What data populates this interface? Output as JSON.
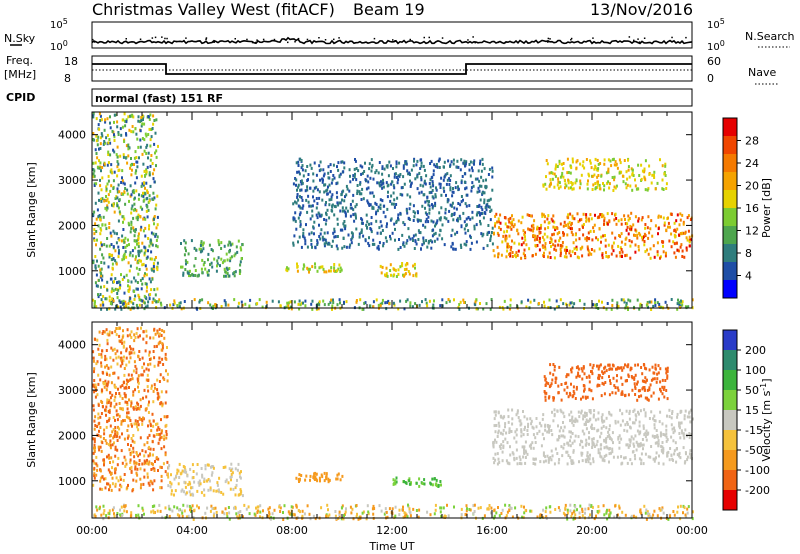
{
  "header": {
    "station": "Christmas Valley West (fitACF)",
    "beam": "Beam 19",
    "date": "13/Nov/2016",
    "cpid_label": "CPID",
    "mode": "normal (fast) 151 RF"
  },
  "aux_panels": {
    "nsky_label": "N.Sky",
    "nsearch_label": "N.Search",
    "noise_ticks_left": [
      "10^5",
      "10^0"
    ],
    "noise_ticks_right": [
      "10^5",
      "10^0"
    ],
    "freq_label": "Freq.",
    "freq_unit": "[MHz]",
    "freq_ticks": [
      "18",
      "8"
    ],
    "nave_label": "Nave",
    "nave_ticks": [
      "60",
      "0"
    ]
  },
  "chart_data": [
    {
      "type": "heatmap",
      "panel": "power",
      "ylabel": "Slant Range [km]",
      "xlabel": "",
      "ylim": [
        180,
        4500
      ],
      "yticks": [
        "1000",
        "2000",
        "3000",
        "4000"
      ],
      "xlim": [
        0,
        24
      ],
      "colorbar": {
        "label": "Power [dB]",
        "ticks": [
          "4",
          "8",
          "12",
          "16",
          "20",
          "24",
          "28"
        ],
        "colors": [
          "#0000ff",
          "#1f4ea6",
          "#2f7d7d",
          "#4ea64e",
          "#7ccc32",
          "#e6d200",
          "#f5a300",
          "#f57a00",
          "#f04600",
          "#e60000"
        ]
      },
      "regions": [
        {
          "t0": 0.0,
          "t1": 2.6,
          "r0": 180,
          "r1": 4500,
          "level": "mixed",
          "description_level": [
            4,
            20
          ]
        },
        {
          "t0": 3.5,
          "t1": 6.0,
          "r0": 900,
          "r1": 1700,
          "level": [
            6,
            14
          ]
        },
        {
          "t0": 7.5,
          "t1": 10.0,
          "r0": 1000,
          "r1": 1200,
          "level": [
            12,
            20
          ]
        },
        {
          "t0": 11.5,
          "t1": 13.0,
          "r0": 900,
          "r1": 1200,
          "level": [
            14,
            20
          ]
        },
        {
          "t0": 8.0,
          "t1": 16.0,
          "r0": 1500,
          "r1": 3500,
          "level": [
            4,
            8
          ]
        },
        {
          "t0": 16.0,
          "t1": 24.0,
          "r0": 1300,
          "r1": 2300,
          "level": [
            16,
            28
          ]
        },
        {
          "t0": 18.0,
          "t1": 23.0,
          "r0": 2800,
          "r1": 3500,
          "level": [
            12,
            20
          ]
        },
        {
          "t0": 0.0,
          "t1": 24.0,
          "r0": 180,
          "r1": 400,
          "level": [
            4,
            20
          ]
        }
      ]
    },
    {
      "type": "heatmap",
      "panel": "velocity",
      "ylabel": "Slant Range [km]",
      "xlabel": "Time UT",
      "ylim": [
        180,
        4500
      ],
      "yticks": [
        "1000",
        "2000",
        "3000",
        "4000"
      ],
      "xlim": [
        0,
        24
      ],
      "xticks": [
        "00:00",
        "04:00",
        "08:00",
        "12:00",
        "16:00",
        "20:00",
        "00:00"
      ],
      "colorbar": {
        "label": "Velocity [m s^-1]",
        "ticks": [
          "200",
          "100",
          "50",
          "15",
          "-15",
          "-50",
          "-100",
          "-200"
        ],
        "colors": [
          "#2a3cc8",
          "#2e8b6e",
          "#3cb43c",
          "#7cd23c",
          "#c8c8c0",
          "#f5c23c",
          "#f59a1e",
          "#f06414",
          "#e60000"
        ]
      },
      "regions": [
        {
          "t0": 0.0,
          "t1": 3.0,
          "r0": 800,
          "r1": 4400,
          "level": [
            -200,
            -15
          ]
        },
        {
          "t0": 3.0,
          "t1": 6.0,
          "r0": 700,
          "r1": 1400,
          "level": [
            -50,
            15
          ]
        },
        {
          "t0": 8.0,
          "t1": 10.0,
          "r0": 1000,
          "r1": 1200,
          "level": [
            -100,
            -50
          ]
        },
        {
          "t0": 12.0,
          "t1": 14.0,
          "r0": 900,
          "r1": 1100,
          "level": [
            15,
            100
          ]
        },
        {
          "t0": 16.0,
          "t1": 24.0,
          "r0": 1400,
          "r1": 2600,
          "level": [
            -15,
            15
          ]
        },
        {
          "t0": 18.0,
          "t1": 23.0,
          "r0": 2800,
          "r1": 3600,
          "level": [
            -200,
            -100
          ]
        },
        {
          "t0": 0.0,
          "t1": 24.0,
          "r0": 180,
          "r1": 500,
          "level": [
            -100,
            50
          ]
        }
      ]
    }
  ]
}
